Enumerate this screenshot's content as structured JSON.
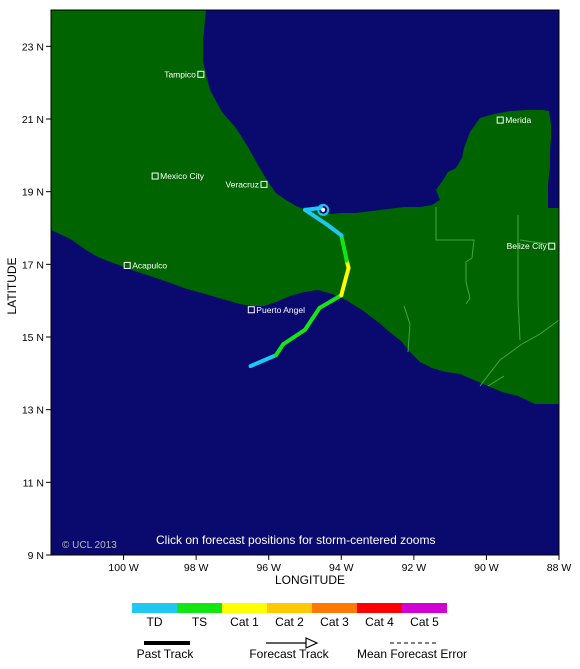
{
  "map": {
    "x_axis_title": "LONGITUDE",
    "y_axis_title": "LATITUDE",
    "lon_range": [
      -102.0,
      -88.0
    ],
    "lat_range": [
      9.0,
      24.0
    ],
    "colors": {
      "ocean": "#0a0a6e",
      "land": "#006400",
      "border": "#3fa83f",
      "text": "#ffffff"
    },
    "lon_ticks": [
      {
        "lon": -100,
        "label": "100 W"
      },
      {
        "lon": -98,
        "label": "98 W"
      },
      {
        "lon": -96,
        "label": "96 W"
      },
      {
        "lon": -94,
        "label": "94 W"
      },
      {
        "lon": -92,
        "label": "92 W"
      },
      {
        "lon": -90,
        "label": "90 W"
      },
      {
        "lon": -88,
        "label": "88 W"
      }
    ],
    "lat_ticks": [
      {
        "lat": 23,
        "label": "23 N"
      },
      {
        "lat": 21,
        "label": "21 N"
      },
      {
        "lat": 19,
        "label": "19 N"
      },
      {
        "lat": 17,
        "label": "17 N"
      },
      {
        "lat": 15,
        "label": "15 N"
      },
      {
        "lat": 13,
        "label": "13 N"
      },
      {
        "lat": 11,
        "label": "11 N"
      },
      {
        "lat": 9,
        "label": "9 N"
      }
    ],
    "cities": [
      {
        "name": "Tampico",
        "lon": -97.87,
        "lat": 22.23,
        "label_side": "left"
      },
      {
        "name": "Merida",
        "lon": -89.62,
        "lat": 20.97,
        "label_side": "right"
      },
      {
        "name": "Mexico City",
        "lon": -99.13,
        "lat": 19.43,
        "label_side": "right"
      },
      {
        "name": "Veracruz",
        "lon": -96.13,
        "lat": 19.2,
        "label_side": "left"
      },
      {
        "name": "Belize City",
        "lon": -88.2,
        "lat": 17.5,
        "label_side": "left"
      },
      {
        "name": "Acapulco",
        "lon": -99.9,
        "lat": 16.97,
        "label_side": "right"
      },
      {
        "name": "Puerto Angel",
        "lon": -96.48,
        "lat": 15.75,
        "label_side": "right"
      }
    ],
    "track": [
      {
        "lon": -96.5,
        "lat": 14.2,
        "intensity": "TD"
      },
      {
        "lon": -95.8,
        "lat": 14.5,
        "intensity": "TD"
      },
      {
        "lon": -95.6,
        "lat": 14.8,
        "intensity": "TS"
      },
      {
        "lon": -95.0,
        "lat": 15.2,
        "intensity": "TS"
      },
      {
        "lon": -94.6,
        "lat": 15.8,
        "intensity": "TS"
      },
      {
        "lon": -94.0,
        "lat": 16.15,
        "intensity": "TS"
      },
      {
        "lon": -93.8,
        "lat": 16.9,
        "intensity": "Cat 1"
      },
      {
        "lon": -93.85,
        "lat": 17.1,
        "intensity": "Cat 1"
      },
      {
        "lon": -94.0,
        "lat": 17.8,
        "intensity": "TS"
      },
      {
        "lon": -94.4,
        "lat": 18.1,
        "intensity": "TD"
      },
      {
        "lon": -95.0,
        "lat": 18.5,
        "intensity": "TD"
      },
      {
        "lon": -94.55,
        "lat": 18.55,
        "intensity": "TD"
      }
    ],
    "current_position": {
      "lon": -94.5,
      "lat": 18.5,
      "intensity": "TD"
    },
    "copyright": "© UCL 2013",
    "instruction": "Click on forecast positions for storm-centered zooms"
  },
  "legend": {
    "categories": [
      {
        "label": "TD",
        "color": "#1ec8f0"
      },
      {
        "label": "TS",
        "color": "#14e614"
      },
      {
        "label": "Cat 1",
        "color": "#ffff00"
      },
      {
        "label": "Cat 2",
        "color": "#ffc800"
      },
      {
        "label": "Cat 3",
        "color": "#ff7800"
      },
      {
        "label": "Cat 4",
        "color": "#ff0000"
      },
      {
        "label": "Cat 5",
        "color": "#d200d2"
      }
    ],
    "past_track_label": "Past Track",
    "forecast_track_label": "Forecast Track",
    "mean_error_label": "Mean Forecast Error"
  }
}
